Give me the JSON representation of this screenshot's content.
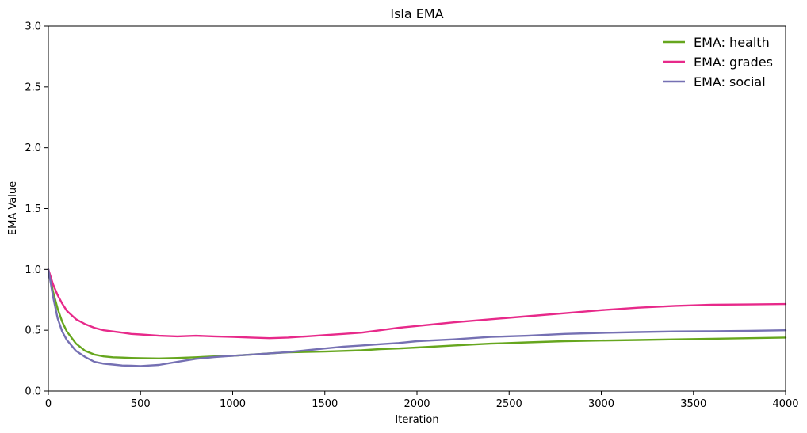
{
  "chart_data": {
    "type": "line",
    "title": "Isla EMA",
    "xlabel": "Iteration",
    "ylabel": "EMA Value",
    "xlim": [
      0,
      4000
    ],
    "ylim": [
      0,
      3.0
    ],
    "xticks": [
      0,
      500,
      1000,
      1500,
      2000,
      2500,
      3000,
      3500,
      4000
    ],
    "yticks": [
      0.0,
      0.5,
      1.0,
      1.5,
      2.0,
      2.5,
      3.0
    ],
    "grid": false,
    "legend_position": "top-right",
    "series": [
      {
        "name": "EMA: health",
        "color": "#66a61e",
        "x": [
          0,
          25,
          50,
          75,
          100,
          150,
          200,
          250,
          300,
          350,
          400,
          450,
          500,
          600,
          700,
          800,
          900,
          1000,
          1100,
          1200,
          1300,
          1400,
          1500,
          1600,
          1700,
          1800,
          1900,
          2000,
          2200,
          2400,
          2600,
          2800,
          3000,
          3200,
          3400,
          3600,
          3800,
          4000
        ],
        "y": [
          1.0,
          0.82,
          0.68,
          0.57,
          0.49,
          0.39,
          0.33,
          0.3,
          0.285,
          0.278,
          0.275,
          0.272,
          0.27,
          0.268,
          0.272,
          0.278,
          0.285,
          0.29,
          0.3,
          0.31,
          0.318,
          0.322,
          0.325,
          0.33,
          0.335,
          0.345,
          0.35,
          0.358,
          0.375,
          0.39,
          0.4,
          0.41,
          0.415,
          0.42,
          0.425,
          0.43,
          0.435,
          0.44
        ]
      },
      {
        "name": "EMA: grades",
        "color": "#e7298a",
        "x": [
          0,
          25,
          50,
          75,
          100,
          150,
          200,
          250,
          300,
          350,
          400,
          450,
          500,
          600,
          700,
          800,
          900,
          1000,
          1100,
          1200,
          1300,
          1400,
          1500,
          1600,
          1700,
          1800,
          1900,
          2000,
          2100,
          2200,
          2400,
          2600,
          2800,
          3000,
          3200,
          3400,
          3600,
          3800,
          4000
        ],
        "y": [
          1.0,
          0.88,
          0.79,
          0.72,
          0.66,
          0.59,
          0.55,
          0.52,
          0.5,
          0.49,
          0.48,
          0.47,
          0.465,
          0.455,
          0.45,
          0.455,
          0.45,
          0.445,
          0.44,
          0.435,
          0.44,
          0.45,
          0.46,
          0.47,
          0.48,
          0.5,
          0.52,
          0.535,
          0.55,
          0.565,
          0.59,
          0.615,
          0.64,
          0.665,
          0.685,
          0.7,
          0.71,
          0.712,
          0.715
        ]
      },
      {
        "name": "EMA: social",
        "color": "#7570b3",
        "x": [
          0,
          25,
          50,
          75,
          100,
          150,
          200,
          250,
          300,
          350,
          400,
          450,
          500,
          550,
          600,
          700,
          800,
          900,
          1000,
          1100,
          1200,
          1300,
          1400,
          1500,
          1600,
          1700,
          1800,
          1900,
          2000,
          2200,
          2400,
          2600,
          2800,
          3000,
          3200,
          3400,
          3600,
          3800,
          4000
        ],
        "y": [
          1.0,
          0.78,
          0.6,
          0.49,
          0.42,
          0.33,
          0.28,
          0.24,
          0.225,
          0.218,
          0.21,
          0.208,
          0.205,
          0.21,
          0.215,
          0.24,
          0.265,
          0.28,
          0.29,
          0.3,
          0.31,
          0.32,
          0.335,
          0.35,
          0.365,
          0.375,
          0.385,
          0.395,
          0.41,
          0.425,
          0.445,
          0.455,
          0.47,
          0.478,
          0.485,
          0.49,
          0.492,
          0.495,
          0.5
        ]
      }
    ]
  }
}
